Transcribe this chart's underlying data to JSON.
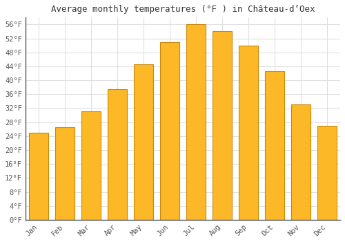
{
  "title": "Average monthly temperatures (°F ) in Château-d’Oex",
  "months": [
    "Jan",
    "Feb",
    "Mar",
    "Apr",
    "May",
    "Jun",
    "Jul",
    "Aug",
    "Sep",
    "Oct",
    "Nov",
    "Dec"
  ],
  "values": [
    25,
    26.5,
    31,
    37.5,
    44.5,
    51,
    56,
    54,
    50,
    42.5,
    33,
    27
  ],
  "bar_color": "#FDB827",
  "bar_edge_color": "#C8880A",
  "ylim": [
    0,
    58
  ],
  "yticks": [
    0,
    4,
    8,
    12,
    16,
    20,
    24,
    28,
    32,
    36,
    40,
    44,
    48,
    52,
    56
  ],
  "background_color": "#ffffff",
  "plot_background": "#ffffff",
  "title_fontsize": 9,
  "tick_fontsize": 7.5,
  "grid_color": "#e0e0e0",
  "figsize": [
    5.0,
    3.5
  ],
  "dpi": 100
}
